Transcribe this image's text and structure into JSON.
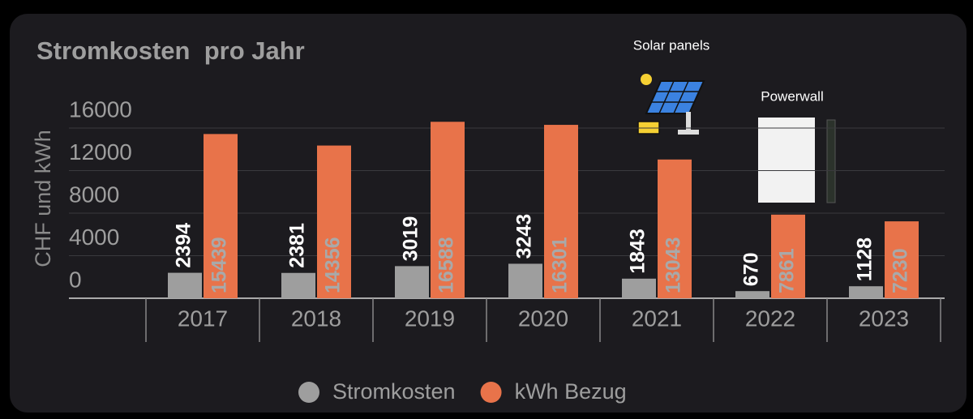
{
  "chart_data": {
    "type": "bar",
    "title": "Stromkosten  pro Jahr",
    "y_label": "CHF und kWh",
    "categories": [
      "2017",
      "2018",
      "2019",
      "2020",
      "2021",
      "2022",
      "2023"
    ],
    "series": [
      {
        "name": "Stromkosten",
        "color": "#9e9e9e",
        "values": [
          2394,
          2381,
          3019,
          3243,
          1843,
          670,
          1128
        ]
      },
      {
        "name": "kWh Bezug",
        "color": "#e8734a",
        "values": [
          15439,
          14356,
          16588,
          16301,
          13043,
          7861,
          7230
        ]
      }
    ],
    "ylim": [
      0,
      16000
    ],
    "yticks": [
      0,
      4000,
      8000,
      12000,
      16000
    ],
    "grid": true,
    "legend": "bottom",
    "annotations": [
      "Solar panels",
      "Powerwall"
    ]
  }
}
